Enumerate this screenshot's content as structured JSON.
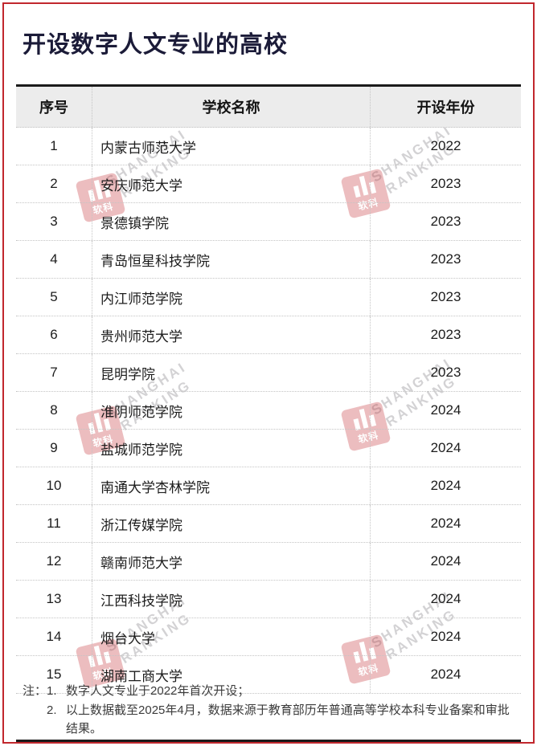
{
  "page": {
    "title": "开设数字人文专业的高校"
  },
  "colors": {
    "frame_red": "#c1272d",
    "title_dark": "#1b1b38",
    "header_bg": "#ececec",
    "rule_dark": "#1b1b1b",
    "dotted_line": "#c4c4c4",
    "body_text": "#1c1c1c",
    "note_text": "#3b3b3b",
    "watermark_red": "#c1272d"
  },
  "chart_data": {
    "type": "table",
    "title": "开设数字人文专业的高校",
    "columns": [
      "序号",
      "学校名称",
      "开设年份"
    ],
    "rows": [
      [
        1,
        "内蒙古师范大学",
        "2022"
      ],
      [
        2,
        "安庆师范大学",
        "2023"
      ],
      [
        3,
        "景德镇学院",
        "2023"
      ],
      [
        4,
        "青岛恒星科技学院",
        "2023"
      ],
      [
        5,
        "内江师范学院",
        "2023"
      ],
      [
        6,
        "贵州师范大学",
        "2023"
      ],
      [
        7,
        "昆明学院",
        "2023"
      ],
      [
        8,
        "淮阴师范学院",
        "2024"
      ],
      [
        9,
        "盐城师范学院",
        "2024"
      ],
      [
        10,
        "南通大学杏林学院",
        "2024"
      ],
      [
        11,
        "浙江传媒学院",
        "2024"
      ],
      [
        12,
        "赣南师范大学",
        "2024"
      ],
      [
        13,
        "江西科技学院",
        "2024"
      ],
      [
        14,
        "烟台大学",
        "2024"
      ],
      [
        15,
        "湖南工商大学",
        "2024"
      ]
    ],
    "notes": [
      "数字人文专业于2022年首次开设；",
      "以上数据截至2025年4月，数据来源于教育部历年普通高等学校本科专业备案和审批结果。"
    ]
  },
  "table": {
    "headers": {
      "no": "序号",
      "name": "学校名称",
      "year": "开设年份"
    }
  },
  "notes": {
    "label": "注：",
    "items": [
      {
        "num": "1.",
        "text": "数字人文专业于2022年首次开设；"
      },
      {
        "num": "2.",
        "text": "以上数据截至2025年4月，数据来源于教育部历年普通高等学校本科专业备案和审批结果。"
      }
    ]
  },
  "watermark": {
    "line1": "SHANGHAI",
    "line2": "RANKING",
    "logo_text": "软科"
  }
}
